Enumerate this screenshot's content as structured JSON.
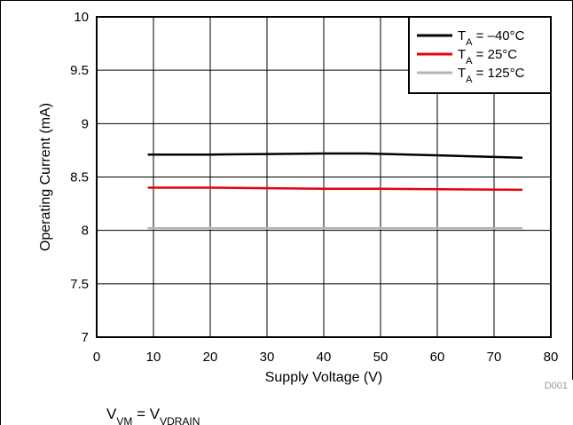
{
  "chart_data": {
    "type": "line",
    "xlabel": "Supply Voltage (V)",
    "ylabel": "Operating Current (mA)",
    "xlim": [
      0,
      80
    ],
    "ylim": [
      7,
      10
    ],
    "x_ticks": [
      "0",
      "10",
      "20",
      "30",
      "40",
      "50",
      "60",
      "70",
      "80"
    ],
    "y_ticks": [
      "7",
      "7.5",
      "8",
      "8.5",
      "9",
      "9.5",
      "10"
    ],
    "grid": true,
    "legend_position": "top-right",
    "series": [
      {
        "name": "T_A = −40°C",
        "name_main": "T",
        "name_sub": "A",
        "name_rest": " = –40°C",
        "color": "#000000",
        "x": [
          9,
          20,
          30,
          40,
          47.5,
          55,
          65,
          75
        ],
        "y": [
          8.71,
          8.71,
          8.715,
          8.72,
          8.72,
          8.71,
          8.695,
          8.68
        ]
      },
      {
        "name": "T_A = 25°C",
        "name_main": "T",
        "name_sub": "A",
        "name_rest": " = 25°C",
        "color": "#e8000b",
        "x": [
          9,
          20,
          30,
          40,
          50,
          60,
          75
        ],
        "y": [
          8.4,
          8.4,
          8.395,
          8.39,
          8.39,
          8.385,
          8.38
        ]
      },
      {
        "name": "T_A = 125°C",
        "name_main": "T",
        "name_sub": "A",
        "name_rest": " = 125°C",
        "color": "#b5b5b5",
        "x": [
          9,
          20,
          30,
          40,
          50,
          60,
          75
        ],
        "y": [
          8.02,
          8.02,
          8.02,
          8.02,
          8.02,
          8.02,
          8.02
        ]
      }
    ]
  },
  "figure_code": "D001",
  "note": {
    "lhs_main": "V",
    "lhs_sub": "VM",
    "eq": " = ",
    "rhs_main": "V",
    "rhs_sub": "VDRAIN"
  }
}
